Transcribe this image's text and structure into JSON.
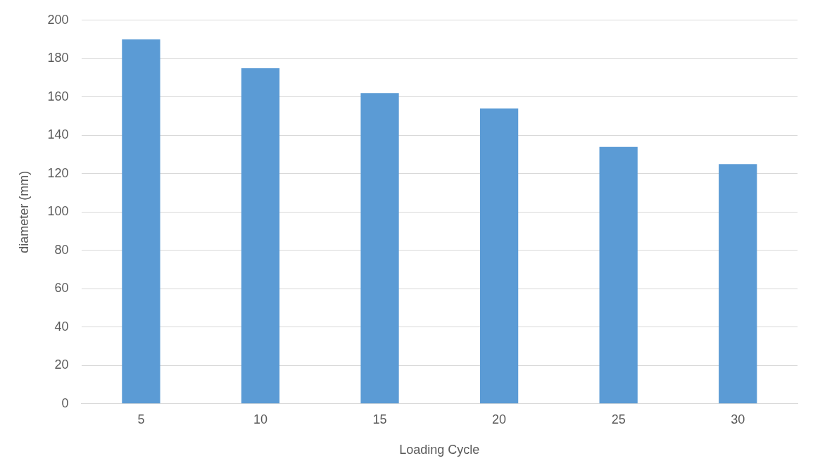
{
  "chart_data": {
    "type": "bar",
    "xlabel": "Loading Cycle",
    "ylabel": "diameter (mm)",
    "categories": [
      "5",
      "10",
      "15",
      "20",
      "25",
      "30"
    ],
    "values": [
      190,
      175,
      162,
      154,
      134,
      125
    ],
    "color": "#5b9bd5",
    "ylim": [
      0,
      200
    ],
    "yticks": [
      0,
      20,
      40,
      60,
      80,
      100,
      120,
      140,
      160,
      180,
      200
    ],
    "grid": "y"
  }
}
